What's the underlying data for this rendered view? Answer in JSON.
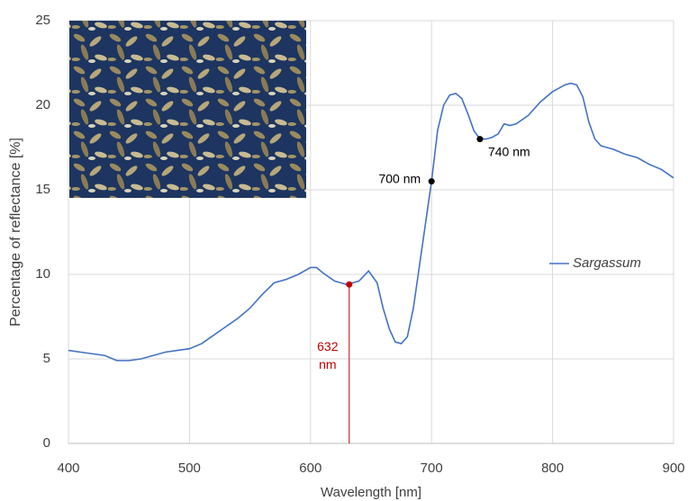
{
  "chart_data": {
    "type": "line",
    "x_label": "Wavelength [nm]",
    "y_label": "Percentage of reflectance [%]",
    "xlim": [
      400,
      900
    ],
    "xticks": [
      400,
      500,
      600,
      700,
      800,
      900
    ],
    "ylim": [
      0,
      25
    ],
    "yticks": [
      0,
      5,
      10,
      15,
      20,
      25
    ],
    "grid": true,
    "legend": "right",
    "series": [
      {
        "name": "Sargassum",
        "color": "#4472c4",
        "x": [
          400,
          410,
          420,
          430,
          440,
          450,
          460,
          470,
          480,
          490,
          500,
          510,
          520,
          530,
          540,
          550,
          560,
          570,
          580,
          590,
          600,
          605,
          610,
          620,
          630,
          640,
          648,
          655,
          660,
          665,
          670,
          675,
          680,
          685,
          690,
          695,
          700,
          705,
          710,
          715,
          720,
          725,
          730,
          735,
          740,
          745,
          750,
          755,
          760,
          765,
          770,
          780,
          790,
          800,
          810,
          815,
          820,
          825,
          830,
          835,
          840,
          850,
          860,
          870,
          880,
          890,
          900
        ],
        "values": [
          5.5,
          5.4,
          5.3,
          5.2,
          4.9,
          4.9,
          5.0,
          5.2,
          5.4,
          5.5,
          5.6,
          5.9,
          6.4,
          6.9,
          7.4,
          8.0,
          8.8,
          9.5,
          9.7,
          10.0,
          10.4,
          10.4,
          10.1,
          9.6,
          9.4,
          9.6,
          10.2,
          9.5,
          8.0,
          6.8,
          6.0,
          5.9,
          6.3,
          8.0,
          10.5,
          13.0,
          15.5,
          18.5,
          20.0,
          20.6,
          20.7,
          20.4,
          19.5,
          18.5,
          18.0,
          18.0,
          18.1,
          18.3,
          18.9,
          18.8,
          18.9,
          19.4,
          20.2,
          20.8,
          21.2,
          21.3,
          21.2,
          20.5,
          19.0,
          18.0,
          17.6,
          17.4,
          17.1,
          16.9,
          16.5,
          16.2,
          15.7
        ]
      }
    ],
    "annotations": [
      {
        "x": 632,
        "y": 9.4,
        "lines": [
          "632",
          "nm"
        ],
        "color": "#c00000"
      },
      {
        "x": 700,
        "y": 15.5,
        "lines": [
          "700 nm"
        ],
        "color": "#000000"
      },
      {
        "x": 740,
        "y": 18.0,
        "lines": [
          "740 nm"
        ],
        "color": "#000000"
      }
    ]
  }
}
